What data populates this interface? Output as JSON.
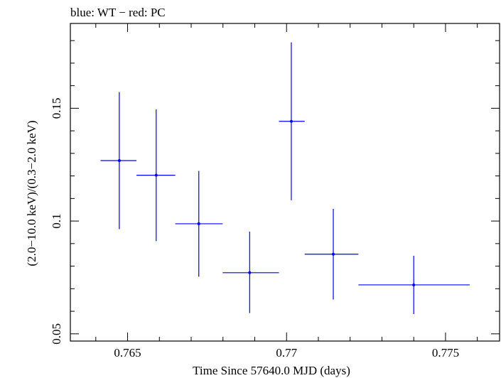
{
  "chart_data": {
    "type": "scatter",
    "title": "blue: WT − red: PC",
    "xlabel": "Time Since 57640.0 MJD (days)",
    "ylabel": "(2.0−10.0 keV)/(0.3−2.0 keV)",
    "xlim": [
      0.7632,
      0.7767
    ],
    "ylim": [
      0.0468,
      0.1876
    ],
    "x_ticks": [
      {
        "value": 0.765,
        "label": "0.765"
      },
      {
        "value": 0.77,
        "label": "0.77"
      },
      {
        "value": 0.775,
        "label": "0.775"
      }
    ],
    "y_ticks": [
      {
        "value": 0.05,
        "label": "0.05"
      },
      {
        "value": 0.1,
        "label": "0.1"
      },
      {
        "value": 0.15,
        "label": "0.15"
      }
    ],
    "grid": false,
    "series": [
      {
        "color": "#0000ff",
        "points": [
          {
            "x": 0.76474,
            "xlo": 0.76415,
            "xhi": 0.76528,
            "y": 0.1268,
            "ylo": 0.0964,
            "yhi": 0.1572
          },
          {
            "x": 0.7659,
            "xlo": 0.76528,
            "xhi": 0.7665,
            "y": 0.1203,
            "ylo": 0.0911,
            "yhi": 0.1495
          },
          {
            "x": 0.76724,
            "xlo": 0.7665,
            "xhi": 0.76799,
            "y": 0.0988,
            "ylo": 0.0753,
            "yhi": 0.1222
          },
          {
            "x": 0.76884,
            "xlo": 0.76799,
            "xhi": 0.76976,
            "y": 0.0771,
            "ylo": 0.0592,
            "yhi": 0.0953
          },
          {
            "x": 0.77015,
            "xlo": 0.76976,
            "xhi": 0.77057,
            "y": 0.1442,
            "ylo": 0.1092,
            "yhi": 0.1792
          },
          {
            "x": 0.77147,
            "xlo": 0.77057,
            "xhi": 0.77226,
            "y": 0.0853,
            "ylo": 0.0652,
            "yhi": 0.1054
          },
          {
            "x": 0.774,
            "xlo": 0.77226,
            "xhi": 0.77576,
            "y": 0.0717,
            "ylo": 0.0588,
            "yhi": 0.0846
          }
        ]
      }
    ]
  }
}
